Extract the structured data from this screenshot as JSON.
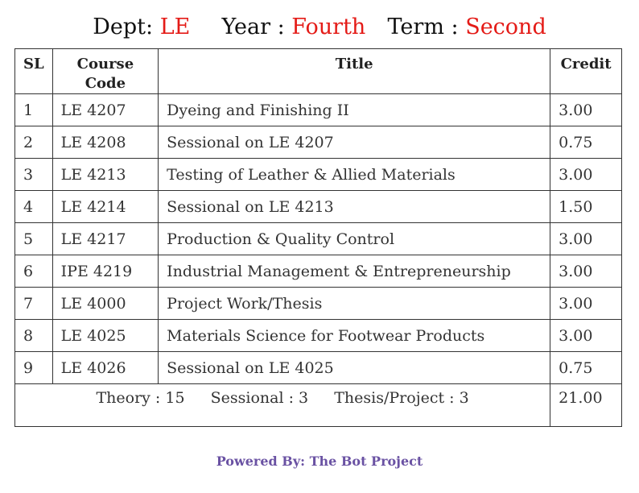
{
  "header": {
    "dept_label": "Dept:",
    "dept_value": "LE",
    "year_label": "Year :",
    "year_value": "Fourth",
    "term_label": "Term :",
    "term_value": "Second"
  },
  "table": {
    "columns": [
      "SL",
      "Course Code",
      "Title",
      "Credit"
    ],
    "rows": [
      {
        "sl": "1",
        "code": "LE 4207",
        "title": "Dyeing and Finishing II",
        "credit": "3.00"
      },
      {
        "sl": "2",
        "code": "LE 4208",
        "title": "Sessional on LE 4207",
        "credit": "0.75"
      },
      {
        "sl": "3",
        "code": "LE 4213",
        "title": "Testing of Leather & Allied Materials",
        "credit": "3.00"
      },
      {
        "sl": "4",
        "code": "LE 4214",
        "title": "Sessional on LE 4213",
        "credit": "1.50"
      },
      {
        "sl": "5",
        "code": "LE 4217",
        "title": "Production & Quality Control",
        "credit": "3.00"
      },
      {
        "sl": "6",
        "code": "IPE 4219",
        "title": "Industrial Management & Entrepreneurship",
        "credit": "3.00"
      },
      {
        "sl": "7",
        "code": "LE 4000",
        "title": "Project Work/Thesis",
        "credit": "3.00"
      },
      {
        "sl": "8",
        "code": "LE 4025",
        "title": "Materials Science for Footwear Products",
        "credit": "3.00"
      },
      {
        "sl": "9",
        "code": "LE 4026",
        "title": "Sessional on LE 4025",
        "credit": "0.75"
      }
    ],
    "summary": {
      "theory": "Theory : 15",
      "sessional": "Sessional : 3",
      "thesis": "Thesis/Project : 3",
      "total_credit": "21.00"
    }
  },
  "footer": {
    "text": "Powered By: The Bot Project"
  },
  "colors": {
    "accent": "#e41b17",
    "footer": "#6a52a3"
  }
}
